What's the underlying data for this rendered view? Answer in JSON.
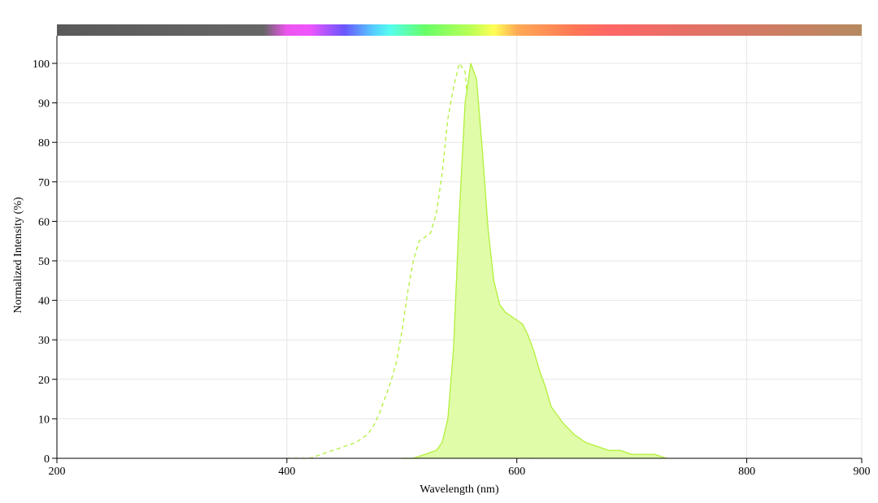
{
  "chart_data": {
    "type": "area",
    "title": "",
    "xlabel": "Wavelength (nm)",
    "ylabel": "Normalized Intensity (%)",
    "xlim": [
      200,
      900
    ],
    "ylim": [
      0,
      100
    ],
    "x_ticks": [
      200,
      400,
      600,
      800,
      900
    ],
    "y_ticks": [
      0,
      10,
      20,
      30,
      40,
      50,
      60,
      70,
      80,
      90,
      100
    ],
    "grid": true,
    "legend": "none",
    "spectrum_bar": {
      "stops": [
        {
          "nm": 200,
          "color": "#5a5a5a"
        },
        {
          "nm": 380,
          "color": "#666666"
        },
        {
          "nm": 400,
          "color": "#ee55ee"
        },
        {
          "nm": 420,
          "color": "#ee55ff"
        },
        {
          "nm": 450,
          "color": "#6a55ff"
        },
        {
          "nm": 475,
          "color": "#55ccff"
        },
        {
          "nm": 490,
          "color": "#55ffee"
        },
        {
          "nm": 520,
          "color": "#66ff66"
        },
        {
          "nm": 560,
          "color": "#bbff55"
        },
        {
          "nm": 580,
          "color": "#ffff55"
        },
        {
          "nm": 600,
          "color": "#ffaa55"
        },
        {
          "nm": 650,
          "color": "#ff7755"
        },
        {
          "nm": 680,
          "color": "#ff6666"
        },
        {
          "nm": 750,
          "color": "#e57066"
        },
        {
          "nm": 900,
          "color": "#b58a60"
        }
      ]
    },
    "series": [
      {
        "role": "excitation",
        "style": "dashed",
        "color": "#b2f03c",
        "x": [
          400,
          410,
          420,
          430,
          440,
          450,
          460,
          470,
          475,
          480,
          485,
          490,
          495,
          500,
          505,
          510,
          515,
          520,
          525,
          530,
          535,
          540,
          545,
          550,
          555,
          560,
          565,
          570,
          575,
          580,
          585,
          590,
          595,
          600,
          610,
          620
        ],
        "values": [
          0,
          0,
          0,
          1,
          2,
          3,
          4,
          6,
          8,
          11,
          15,
          19,
          24,
          32,
          42,
          50,
          55,
          56,
          57,
          62,
          72,
          86,
          94,
          100,
          98,
          80,
          55,
          35,
          20,
          11,
          6,
          3,
          1,
          0.5,
          0,
          0
        ]
      },
      {
        "role": "emission",
        "style": "solid-filled",
        "color": "#b2f03c",
        "fill": "#e0fca8",
        "x": [
          500,
          510,
          520,
          530,
          535,
          540,
          545,
          550,
          555,
          560,
          565,
          570,
          575,
          580,
          585,
          590,
          595,
          600,
          605,
          610,
          615,
          620,
          625,
          630,
          640,
          650,
          660,
          670,
          680,
          690,
          700,
          710,
          720,
          730
        ],
        "values": [
          0,
          0,
          1,
          2,
          4,
          10,
          28,
          62,
          90,
          100,
          96,
          78,
          58,
          45,
          39,
          37,
          36,
          35,
          34,
          31,
          27,
          22,
          18,
          13,
          9,
          6,
          4,
          3,
          2,
          2,
          1,
          1,
          1,
          0
        ]
      }
    ]
  }
}
